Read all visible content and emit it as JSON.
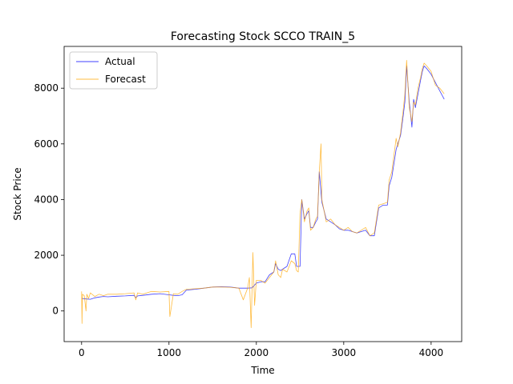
{
  "chart_data": {
    "type": "line",
    "title": "Forecasting Stock SCCO TRAIN_5",
    "xlabel": "Time",
    "ylabel": "Stock Price",
    "xlim": [
      -200,
      4350
    ],
    "ylim": [
      -1100,
      9500
    ],
    "xticks": [
      0,
      1000,
      2000,
      3000,
      4000
    ],
    "yticks": [
      0,
      2000,
      4000,
      6000,
      8000
    ],
    "grid": false,
    "legend": "top-left",
    "series": [
      {
        "name": "Actual",
        "color": "#0000ff",
        "x": [
          0,
          50,
          100,
          150,
          200,
          250,
          300,
          400,
          500,
          600,
          620,
          640,
          700,
          800,
          900,
          1000,
          1050,
          1100,
          1150,
          1200,
          1300,
          1400,
          1500,
          1600,
          1700,
          1800,
          1900,
          1950,
          2000,
          2050,
          2100,
          2150,
          2200,
          2220,
          2250,
          2280,
          2300,
          2350,
          2400,
          2440,
          2460,
          2480,
          2500,
          2520,
          2550,
          2580,
          2600,
          2620,
          2650,
          2680,
          2700,
          2720,
          2750,
          2800,
          2850,
          2900,
          2950,
          3000,
          3050,
          3100,
          3150,
          3200,
          3250,
          3300,
          3350,
          3400,
          3450,
          3500,
          3520,
          3550,
          3600,
          3620,
          3650,
          3680,
          3700,
          3720,
          3750,
          3780,
          3800,
          3820,
          3850,
          3880,
          3900,
          3920,
          3950,
          4000,
          4050,
          4100,
          4150
        ],
        "y": [
          450,
          430,
          420,
          470,
          500,
          520,
          510,
          530,
          540,
          560,
          480,
          540,
          560,
          600,
          620,
          580,
          560,
          550,
          580,
          750,
          780,
          820,
          860,
          870,
          860,
          820,
          820,
          830,
          1000,
          1050,
          1050,
          1300,
          1400,
          1700,
          1500,
          1450,
          1500,
          1600,
          2050,
          2050,
          1600,
          1600,
          1600,
          4000,
          3300,
          3500,
          3600,
          3000,
          3000,
          3200,
          3300,
          5000,
          3900,
          3300,
          3200,
          3100,
          2950,
          2900,
          2900,
          2850,
          2800,
          2850,
          2900,
          2700,
          2700,
          3700,
          3800,
          3800,
          4500,
          4800,
          5800,
          6000,
          6300,
          7000,
          7500,
          8800,
          7500,
          6600,
          7600,
          7300,
          7800,
          8300,
          8600,
          8800,
          8700,
          8500,
          8200,
          7900,
          7600
        ]
      },
      {
        "name": "Forecast",
        "color": "#ffa500",
        "x": [
          0,
          5,
          10,
          30,
          50,
          60,
          80,
          100,
          150,
          200,
          250,
          300,
          400,
          500,
          600,
          620,
          640,
          700,
          800,
          900,
          1000,
          1010,
          1050,
          1100,
          1150,
          1200,
          1300,
          1400,
          1500,
          1600,
          1700,
          1800,
          1850,
          1900,
          1920,
          1940,
          1960,
          1980,
          2000,
          2050,
          2100,
          2150,
          2200,
          2220,
          2250,
          2280,
          2300,
          2350,
          2400,
          2440,
          2460,
          2480,
          2500,
          2520,
          2550,
          2580,
          2600,
          2620,
          2650,
          2680,
          2700,
          2720,
          2740,
          2750,
          2800,
          2850,
          2900,
          2950,
          3000,
          3050,
          3100,
          3150,
          3200,
          3250,
          3300,
          3350,
          3400,
          3450,
          3500,
          3520,
          3550,
          3600,
          3620,
          3650,
          3680,
          3700,
          3720,
          3750,
          3780,
          3800,
          3820,
          3850,
          3880,
          3900,
          3920,
          3950,
          4000,
          4050,
          4100,
          4150
        ],
        "y": [
          700,
          -450,
          600,
          550,
          0,
          600,
          450,
          650,
          520,
          600,
          550,
          600,
          600,
          620,
          650,
          400,
          650,
          600,
          700,
          680,
          700,
          -200,
          620,
          600,
          700,
          780,
          800,
          820,
          860,
          860,
          850,
          820,
          400,
          820,
          1200,
          -600,
          2100,
          200,
          1100,
          1100,
          1000,
          1200,
          1400,
          1800,
          1300,
          1200,
          1500,
          1400,
          1800,
          1700,
          1450,
          1400,
          3500,
          4000,
          3200,
          3600,
          3700,
          2900,
          3000,
          3300,
          3400,
          5000,
          6000,
          4000,
          3200,
          3300,
          3100,
          3000,
          2900,
          3000,
          2850,
          2800,
          2900,
          3000,
          2700,
          2800,
          3800,
          3850,
          3900,
          4700,
          5000,
          6200,
          5900,
          6400,
          7200,
          7800,
          9000,
          7300,
          6800,
          7500,
          7400,
          8000,
          8400,
          8700,
          8900,
          8800,
          8600,
          8100,
          8000,
          7800
        ]
      }
    ]
  }
}
